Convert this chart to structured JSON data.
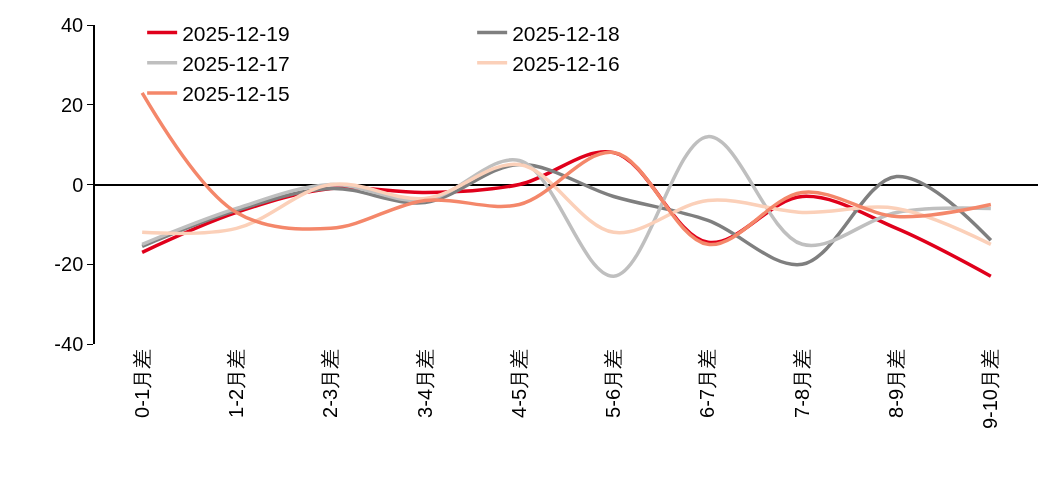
{
  "chart_data": {
    "type": "line",
    "categories": [
      "0-1月差",
      "1-2月差",
      "2-3月差",
      "3-4月差",
      "4-5月差",
      "5-6月差",
      "6-7月差",
      "7-8月差",
      "8-9月差",
      "9-10月差"
    ],
    "series": [
      {
        "name": "2025-12-19",
        "color": "#e0001b",
        "values": [
          -17,
          -7,
          -1,
          -2,
          0,
          8,
          -14.5,
          -3,
          -11,
          -23
        ]
      },
      {
        "name": "2025-12-18",
        "color": "#7f7f7f",
        "values": [
          -15.5,
          -6.5,
          -1,
          -4.5,
          5,
          -3,
          -9,
          -20,
          2,
          -14
        ]
      },
      {
        "name": "2025-12-17",
        "color": "#bfbfbf",
        "values": [
          -15,
          -6,
          0,
          -4,
          6,
          -23,
          12,
          -15,
          -7,
          -6
        ]
      },
      {
        "name": "2025-12-16",
        "color": "#fbd0b9",
        "values": [
          -12,
          -11,
          0,
          -3.5,
          5,
          -12,
          -4,
          -7,
          -6,
          -15
        ]
      },
      {
        "name": "2025-12-15",
        "color": "#f4876a",
        "values": [
          23,
          -7,
          -11,
          -4,
          -5,
          8,
          -15,
          -2,
          -8,
          -5
        ]
      }
    ],
    "ylim": [
      -40,
      40
    ],
    "yticks": [
      -40,
      -20,
      0,
      20,
      40
    ],
    "legend": "top",
    "marker": "none",
    "line_style": "solid"
  }
}
